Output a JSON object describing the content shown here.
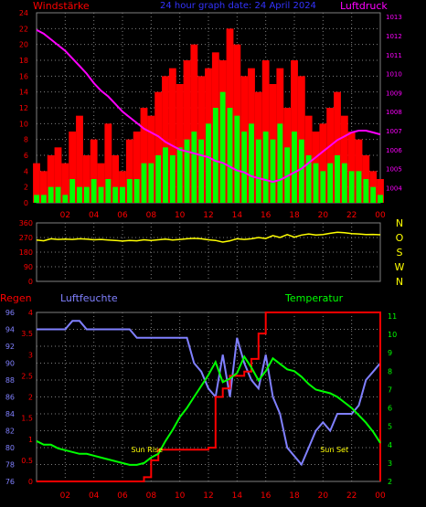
{
  "header": {
    "title": "24 hour graph date: 24 April 2024",
    "left_label": "Windstärke",
    "right_label": "Luftdruck"
  },
  "bottom_header": {
    "regen": "Regen",
    "luftfeuchte": "Luftfeuchte",
    "temperatur": "Temperatur"
  },
  "colors": {
    "wind_gust": "#ff0000",
    "wind_avg": "#00ff00",
    "pressure": "#ff00ff",
    "direction": "#ffff00",
    "humidity": "#8080ff",
    "rain": "#ff0000",
    "temperature": "#00ff00",
    "grid": "#808080",
    "axis_text": "#ff0000"
  },
  "chart_data": [
    {
      "type": "bar",
      "name": "wind",
      "xlabel": "",
      "ylabel": "Windstärke",
      "ylabel2": "Luftdruck",
      "xticks": [
        "02",
        "04",
        "06",
        "08",
        "10",
        "12",
        "14",
        "16",
        "18",
        "20",
        "22",
        "00"
      ],
      "yticks_left": [
        0,
        2,
        4,
        6,
        8,
        10,
        12,
        14,
        16,
        18,
        20,
        22,
        24
      ],
      "yticks_right": [
        1004,
        1005,
        1006,
        1007,
        1008,
        1009,
        1010,
        1011,
        1012,
        1013
      ],
      "ylim": [
        0,
        24
      ],
      "ylim2": [
        1003.2,
        1013.2
      ],
      "x_hours": [
        0,
        0.5,
        1,
        1.5,
        2,
        2.5,
        3,
        3.5,
        4,
        4.5,
        5,
        5.5,
        6,
        6.5,
        7,
        7.5,
        8,
        8.5,
        9,
        9.5,
        10,
        10.5,
        11,
        11.5,
        12,
        12.5,
        13,
        13.5,
        14,
        14.5,
        15,
        15.5,
        16,
        16.5,
        17,
        17.5,
        18,
        18.5,
        19,
        19.5,
        20,
        20.5,
        21,
        21.5,
        22,
        22.5,
        23,
        23.5,
        24
      ],
      "series": [
        {
          "name": "gust",
          "values": [
            5,
            4,
            6,
            7,
            5,
            9,
            11,
            6,
            8,
            5,
            10,
            6,
            4,
            8,
            9,
            12,
            11,
            14,
            16,
            17,
            15,
            18,
            20,
            16,
            17,
            19,
            18,
            22,
            20,
            16,
            17,
            14,
            18,
            15,
            17,
            12,
            18,
            16,
            11,
            9,
            10,
            12,
            14,
            11,
            9,
            8,
            6,
            4,
            3
          ]
        },
        {
          "name": "average",
          "values": [
            1,
            1,
            2,
            2,
            1,
            3,
            2,
            2,
            3,
            2,
            3,
            2,
            2,
            3,
            3,
            5,
            5,
            6,
            7,
            6,
            7,
            8,
            9,
            8,
            10,
            12,
            14,
            12,
            11,
            9,
            10,
            8,
            9,
            8,
            10,
            7,
            9,
            8,
            6,
            5,
            4,
            5,
            6,
            5,
            4,
            4,
            3,
            2,
            1
          ]
        },
        {
          "name": "pressure",
          "values": [
            1012.3,
            1012.1,
            1011.8,
            1011.5,
            1011.2,
            1010.8,
            1010.4,
            1010.0,
            1009.5,
            1009.1,
            1008.8,
            1008.4,
            1008.0,
            1007.7,
            1007.4,
            1007.1,
            1006.9,
            1006.7,
            1006.4,
            1006.2,
            1006.0,
            1005.9,
            1005.8,
            1005.7,
            1005.6,
            1005.4,
            1005.3,
            1005.1,
            1004.9,
            1004.8,
            1004.6,
            1004.5,
            1004.4,
            1004.3,
            1004.4,
            1004.6,
            1004.8,
            1005.0,
            1005.3,
            1005.6,
            1005.9,
            1006.2,
            1006.5,
            1006.7,
            1006.9,
            1007.0,
            1007.0,
            1006.9,
            1006.8
          ]
        }
      ]
    },
    {
      "type": "line",
      "name": "direction",
      "xticks": [
        "02",
        "04",
        "06",
        "08",
        "10",
        "12",
        "14",
        "16",
        "18",
        "20",
        "22",
        "00"
      ],
      "yticks_left": [
        0,
        90,
        180,
        270,
        360
      ],
      "yticks_right": [
        "N",
        "W",
        "S",
        "O",
        "N"
      ],
      "ylim": [
        0,
        360
      ],
      "x_hours": [
        0,
        0.5,
        1,
        1.5,
        2,
        2.5,
        3,
        3.5,
        4,
        4.5,
        5,
        5.5,
        6,
        6.5,
        7,
        7.5,
        8,
        8.5,
        9,
        9.5,
        10,
        10.5,
        11,
        11.5,
        12,
        12.5,
        13,
        13.5,
        14,
        14.5,
        15,
        15.5,
        16,
        16.5,
        17,
        17.5,
        18,
        18.5,
        19,
        19.5,
        20,
        20.5,
        21,
        21.5,
        22,
        22.5,
        23,
        23.5,
        24
      ],
      "series": [
        {
          "name": "direction",
          "values": [
            255,
            250,
            262,
            258,
            260,
            258,
            262,
            260,
            256,
            258,
            255,
            252,
            248,
            252,
            250,
            256,
            252,
            256,
            260,
            255,
            258,
            262,
            265,
            262,
            256,
            252,
            242,
            250,
            262,
            258,
            262,
            270,
            264,
            282,
            270,
            288,
            272,
            285,
            292,
            286,
            288,
            296,
            302,
            300,
            294,
            292,
            288,
            289,
            287
          ]
        }
      ]
    },
    {
      "type": "line",
      "name": "rain-humidity-temperature",
      "xticks": [
        "02",
        "04",
        "06",
        "08",
        "10",
        "12",
        "14",
        "16",
        "18",
        "20",
        "22",
        "00"
      ],
      "yticks_rain": [
        0,
        0.5,
        1,
        1.5,
        2,
        2.5,
        3,
        3.5,
        4
      ],
      "yticks_humidity": [
        76,
        78,
        80,
        82,
        84,
        86,
        88,
        90,
        92,
        94,
        96
      ],
      "yticks_temp": [
        2,
        3,
        4,
        5,
        6,
        7,
        8,
        9,
        10,
        11
      ],
      "ylim_rain": [
        0,
        4
      ],
      "ylim_humidity": [
        76,
        96
      ],
      "ylim_temp": [
        2,
        11.2
      ],
      "annotations": [
        "Sun Rise",
        "Sun Set"
      ],
      "x_hours": [
        0,
        0.5,
        1,
        1.5,
        2,
        2.5,
        3,
        3.5,
        4,
        4.5,
        5,
        5.5,
        6,
        6.5,
        7,
        7.5,
        8,
        8.5,
        9,
        9.5,
        10,
        10.5,
        11,
        11.5,
        12,
        12.5,
        13,
        13.5,
        14,
        14.5,
        15,
        15.5,
        16,
        16.5,
        17,
        17.5,
        18,
        18.5,
        19,
        19.5,
        20,
        20.5,
        21,
        21.5,
        22,
        22.5,
        23,
        23.5,
        24
      ],
      "series": [
        {
          "name": "humidity",
          "values": [
            94,
            94,
            94,
            94,
            94,
            95,
            95,
            94,
            94,
            94,
            94,
            94,
            94,
            94,
            93,
            93,
            93,
            93,
            93,
            93,
            93,
            93,
            90,
            89,
            87,
            86,
            91,
            86,
            93,
            90,
            88,
            87,
            91,
            86,
            84,
            80,
            79,
            78,
            80,
            82,
            83,
            82,
            84,
            84,
            84,
            85,
            88,
            89,
            90
          ]
        },
        {
          "name": "rain",
          "values": [
            0,
            0,
            0,
            0,
            0,
            0,
            0,
            0,
            0,
            0,
            0,
            0,
            0,
            0,
            0,
            0.1,
            0.5,
            0.75,
            0.75,
            0.75,
            0.75,
            0.75,
            0.75,
            0.75,
            0.8,
            2.0,
            2.2,
            2.5,
            2.5,
            2.6,
            2.9,
            3.5,
            4.0,
            4.0,
            4.0,
            4.0,
            4.0,
            4.0,
            4.0,
            4.0,
            4.0,
            4.0,
            4.0,
            4.0,
            4.0,
            4.0,
            4.0,
            4.0,
            0
          ]
        },
        {
          "name": "temperature",
          "values": [
            4.2,
            4.0,
            4.0,
            3.8,
            3.7,
            3.6,
            3.5,
            3.5,
            3.4,
            3.3,
            3.2,
            3.1,
            3.0,
            2.9,
            2.9,
            3.0,
            3.3,
            3.5,
            4.2,
            4.8,
            5.5,
            6.0,
            6.6,
            7.2,
            7.8,
            8.5,
            7.4,
            7.6,
            7.9,
            8.8,
            8.2,
            7.5,
            8.0,
            8.7,
            8.4,
            8.1,
            8.0,
            7.7,
            7.3,
            7.0,
            6.9,
            6.8,
            6.6,
            6.3,
            6.0,
            5.6,
            5.2,
            4.7,
            4.1
          ]
        }
      ]
    }
  ]
}
